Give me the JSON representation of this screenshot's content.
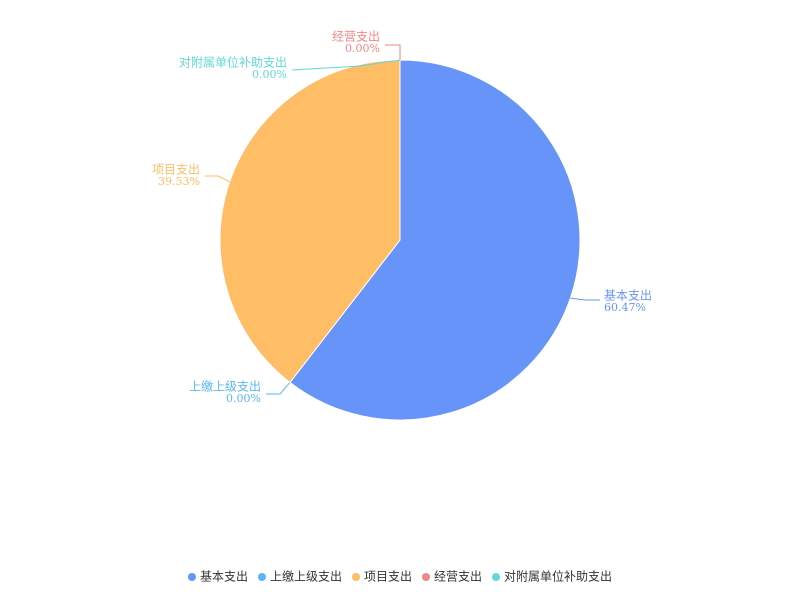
{
  "chart_data": {
    "type": "pie",
    "categories": [
      "基本支出",
      "上缴上级支出",
      "项目支出",
      "经营支出",
      "对附属单位补助支出"
    ],
    "values": [
      60.47,
      0,
      39.53,
      0,
      0
    ],
    "value_labels": [
      "60.47%",
      "0.00%",
      "39.53%",
      "0.00%",
      "0.00%"
    ],
    "colors": [
      "#6794f9",
      "#5ab6f5",
      "#ffbd66",
      "#f28686",
      "#5fd8d8"
    ],
    "legend": "bottom"
  }
}
